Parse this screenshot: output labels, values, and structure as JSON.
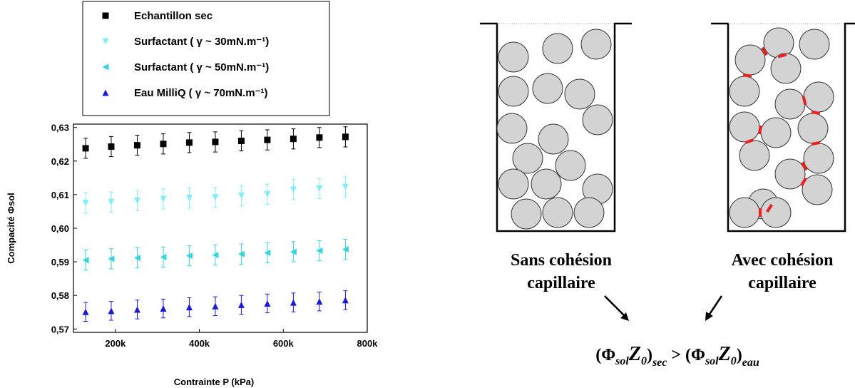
{
  "chart_data": {
    "type": "scatter",
    "x_label": "Contrainte P (kPa)",
    "y_label": "Compacité Φsol",
    "x": [
      129000,
      190000,
      252000,
      314000,
      376000,
      438000,
      500000,
      562000,
      624000,
      686000,
      748000
    ],
    "xlim": [
      100000,
      800000
    ],
    "ylim": [
      0.569,
      0.631
    ],
    "xticks": [
      {
        "value": 200000,
        "label": "200k"
      },
      {
        "value": 400000,
        "label": "400k"
      },
      {
        "value": 600000,
        "label": "600k"
      },
      {
        "value": 800000,
        "label": "800k"
      }
    ],
    "yticks": [
      {
        "value": 0.57,
        "label": "0,57"
      },
      {
        "value": 0.58,
        "label": "0,58"
      },
      {
        "value": 0.59,
        "label": "0,59"
      },
      {
        "value": 0.6,
        "label": "0,60"
      },
      {
        "value": 0.61,
        "label": "0,61"
      },
      {
        "value": 0.62,
        "label": "0,62"
      },
      {
        "value": 0.63,
        "label": "0,63"
      }
    ],
    "series": [
      {
        "name": "Echantillon sec",
        "color": "#000000",
        "marker": "square",
        "values": [
          0.6238,
          0.6243,
          0.6247,
          0.6251,
          0.6255,
          0.6257,
          0.626,
          0.6263,
          0.6266,
          0.627,
          0.6272
        ],
        "errors": [
          0.003,
          0.003,
          0.003,
          0.003,
          0.003,
          0.003,
          0.003,
          0.003,
          0.003,
          0.003,
          0.003
        ]
      },
      {
        "name": "Surfactant ( γ ~ 30mN.m⁻¹)",
        "color": "#80eef8",
        "marker": "triangle-down",
        "values": [
          0.6075,
          0.6078,
          0.6082,
          0.6087,
          0.609,
          0.6092,
          0.6097,
          0.6101,
          0.6115,
          0.6118,
          0.6123
        ],
        "errors": [
          0.003,
          0.003,
          0.003,
          0.003,
          0.003,
          0.003,
          0.003,
          0.003,
          0.003,
          0.003,
          0.003
        ]
      },
      {
        "name": "Surfactant ( γ ~ 50mN.m⁻¹)",
        "color": "#33d4dc",
        "marker": "triangle-left",
        "values": [
          0.5905,
          0.5909,
          0.5912,
          0.5914,
          0.5918,
          0.592,
          0.5923,
          0.5927,
          0.593,
          0.5933,
          0.5937
        ],
        "errors": [
          0.003,
          0.003,
          0.003,
          0.003,
          0.003,
          0.003,
          0.003,
          0.003,
          0.003,
          0.003,
          0.003
        ]
      },
      {
        "name": "Eau MilliQ ( γ ~ 70mN.m⁻¹)",
        "color": "#1a1ad8",
        "marker": "triangle-up",
        "values": [
          0.5751,
          0.5754,
          0.5758,
          0.5761,
          0.5765,
          0.5768,
          0.5772,
          0.5776,
          0.5779,
          0.5782,
          0.5786
        ],
        "errors": [
          0.0028,
          0.0028,
          0.0028,
          0.0028,
          0.0028,
          0.0028,
          0.0028,
          0.0028,
          0.0028,
          0.0028,
          0.0028
        ]
      }
    ]
  },
  "diagram": {
    "left_label": [
      "Sans cohésion",
      "capillaire"
    ],
    "right_label": [
      "Avec cohésion",
      "capillaire"
    ],
    "formula": [
      "(Φ",
      "sol",
      "Z",
      "0",
      ")",
      "sec",
      " > (Φ",
      "sol",
      "Z",
      "0",
      ")",
      "eau"
    ]
  }
}
